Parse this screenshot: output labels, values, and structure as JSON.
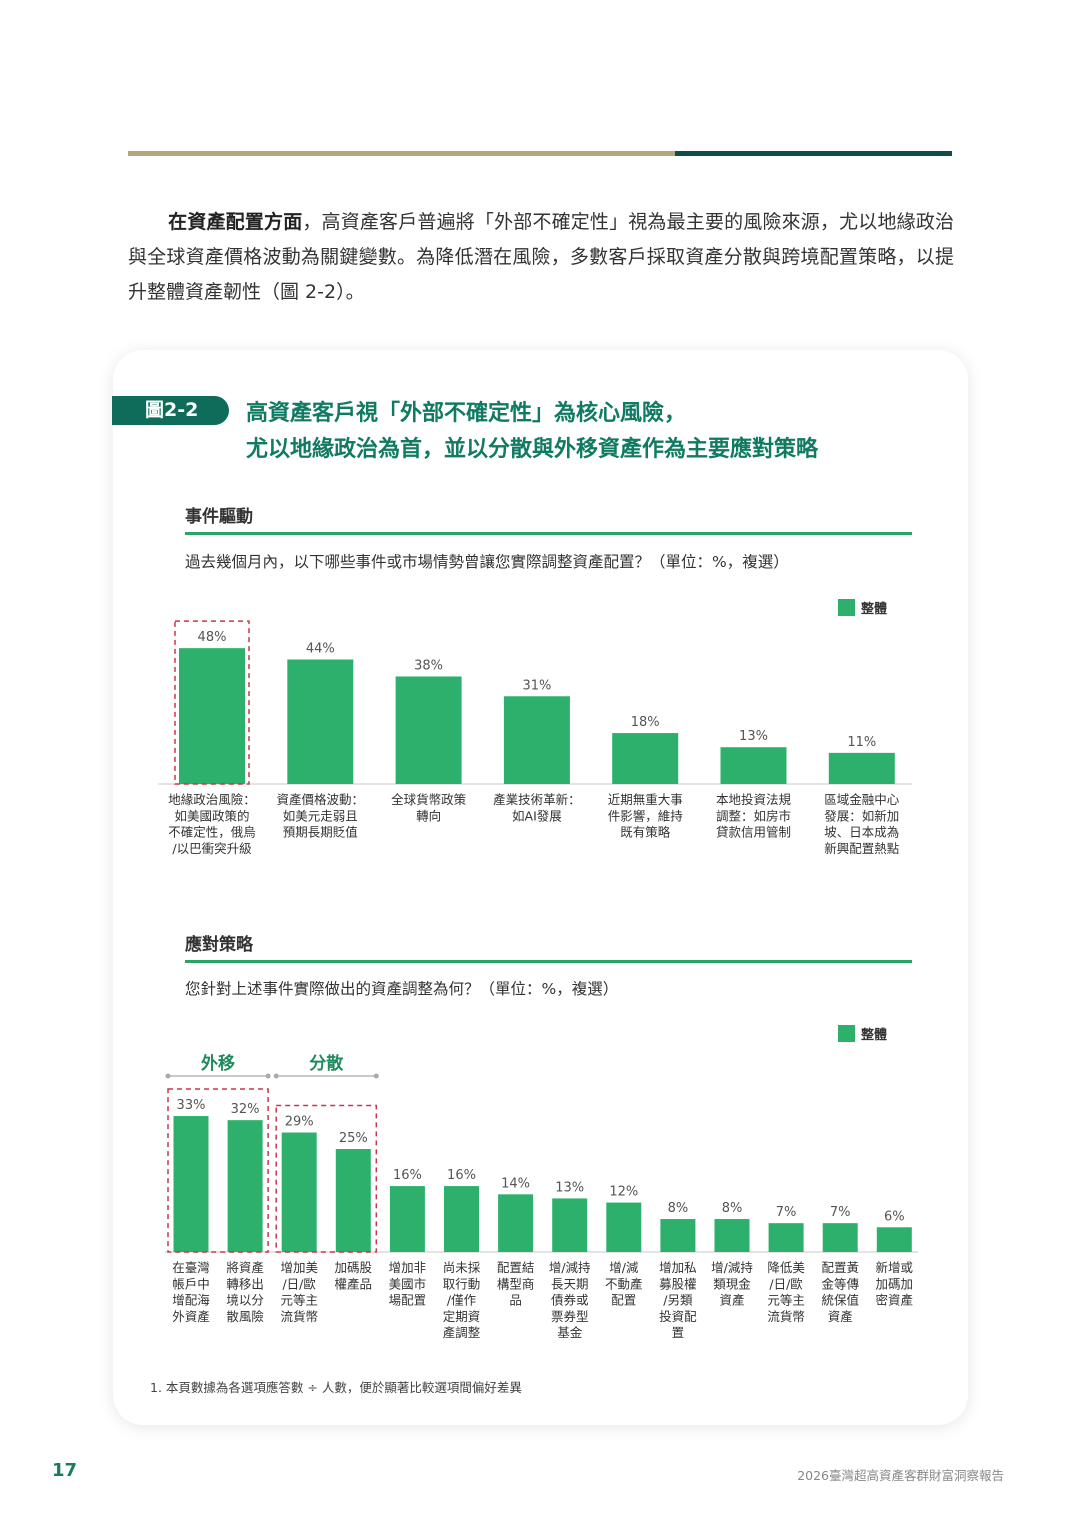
{
  "intro": {
    "lead": "在資產配置方面",
    "text": "，高資產客戶普遍將「外部不確定性」視為最主要的風險來源，尤以地緣政治與全球資產價格波動為關鍵變數。為降低潛在風險，多數客戶採取資產分散與跨境配置策略，以提升整體資產韌性（圖 2-2）。"
  },
  "figure": {
    "tag": "圖2-2",
    "title_line1": "高資產客戶視「外部不確定性」為核心風險，",
    "title_line2": "尤以地緣政治為首，並以分散與外移資產作為主要應對策略"
  },
  "sections": {
    "events": {
      "heading": "事件驅動",
      "question": "過去幾個月內，以下哪些事件或市場情勢曾讓您實際調整資產配置？（單位：%，複選）",
      "legend": "整體"
    },
    "strategy": {
      "heading": "應對策略",
      "question": "您針對上述事件實際做出的資產調整為何？（單位：%，複選）",
      "legend": "整體",
      "group_labels": [
        "外移",
        "分散"
      ]
    }
  },
  "colors": {
    "bar": "#2cb06c",
    "highlight": "#c8374a",
    "title": "#107a62",
    "tag": "#0f6b5a"
  },
  "chart_data": [
    {
      "type": "bar",
      "categories": [
        "地緣政治風險：如美國政策的不確定性，俄烏/以巴衝突升級",
        "資產價格波動：如美元走弱且預期長期貶值",
        "全球貨幣政策轉向",
        "產業技術革新：如AI發展",
        "近期無重大事件影響，維持既有策略",
        "本地投資法規調整：如房市貸款信用管制",
        "區域金融中心發展：如新加坡、日本成為新興配置熱點"
      ],
      "category_lines": [
        [
          "地緣政治風險：",
          "如美國政策的",
          "不確定性，俄烏",
          "/以巴衝突升級"
        ],
        [
          "資產價格波動：",
          "如美元走弱且",
          "預期長期貶值"
        ],
        [
          "全球貨幣政策",
          "轉向"
        ],
        [
          "產業技術革新：",
          "如AI發展"
        ],
        [
          "近期無重大事",
          "件影響，維持",
          "既有策略"
        ],
        [
          "本地投資法規",
          "調整：如房市",
          "貸款信用管制"
        ],
        [
          "區域金融中心",
          "發展：如新加",
          "坡、日本成為",
          "新興配置熱點"
        ]
      ],
      "series": [
        {
          "name": "整體",
          "values": [
            48,
            44,
            38,
            31,
            18,
            13,
            11
          ]
        }
      ],
      "value_labels": [
        "48%",
        "44%",
        "38%",
        "31%",
        "18%",
        "13%",
        "11%"
      ],
      "highlighted": [
        0
      ],
      "ylim": [
        0,
        50
      ]
    },
    {
      "type": "bar",
      "categories": [
        "在臺灣帳戶中增配海外資產",
        "將資產轉移出境以分散風險",
        "增加美/日/歐元等主流貨幣",
        "加碼股權產品",
        "增加非美國市場配置",
        "尚未採取行動/僅作定期資產調整",
        "配置結構型商品",
        "增/減持長天期債券或票券型基金",
        "增/減不動產配置",
        "增加私募股權/另類投資配置",
        "增/減持類現金資產",
        "降低美/日/歐元等主流貨幣",
        "配置黃金等傳統保值資產",
        "新增或加碼加密資產"
      ],
      "category_lines": [
        [
          "在臺灣",
          "帳戶中",
          "增配海",
          "外資產"
        ],
        [
          "將資產",
          "轉移出",
          "境以分",
          "散風險"
        ],
        [
          "增加美",
          "/日/歐",
          "元等主",
          "流貨幣"
        ],
        [
          "加碼股",
          "權產品"
        ],
        [
          "增加非",
          "美國市",
          "場配置"
        ],
        [
          "尚未採",
          "取行動",
          "/僅作",
          "定期資",
          "產調整"
        ],
        [
          "配置結",
          "構型商",
          "品"
        ],
        [
          "增/減持",
          "長天期",
          "債券或",
          "票券型",
          "基金"
        ],
        [
          "增/減",
          "不動產",
          "配置"
        ],
        [
          "增加私",
          "募股權",
          "/另類",
          "投資配",
          "置"
        ],
        [
          "增/減持",
          "類現金",
          "資產"
        ],
        [
          "降低美",
          "/日/歐",
          "元等主",
          "流貨幣"
        ],
        [
          "配置黃",
          "金等傳",
          "統保值",
          "資產"
        ],
        [
          "新增或",
          "加碼加",
          "密資產"
        ]
      ],
      "series": [
        {
          "name": "整體",
          "values": [
            33,
            32,
            29,
            25,
            16,
            16,
            14,
            13,
            12,
            8,
            8,
            7,
            7,
            6
          ]
        }
      ],
      "value_labels": [
        "33%",
        "32%",
        "29%",
        "25%",
        "16%",
        "16%",
        "14%",
        "13%",
        "12%",
        "8%",
        "8%",
        "7%",
        "7%",
        "6%"
      ],
      "groups": [
        {
          "label": "外移",
          "members": [
            0,
            1
          ]
        },
        {
          "label": "分散",
          "members": [
            2,
            3
          ]
        }
      ],
      "ylim": [
        0,
        35
      ]
    }
  ],
  "footnote": "1. 本頁數據為各選項應答數 ÷ 人數，便於顯著比較選項間偏好差異",
  "footer": {
    "page": "17",
    "report": "2026臺灣超高資產客群財富洞察報告"
  }
}
